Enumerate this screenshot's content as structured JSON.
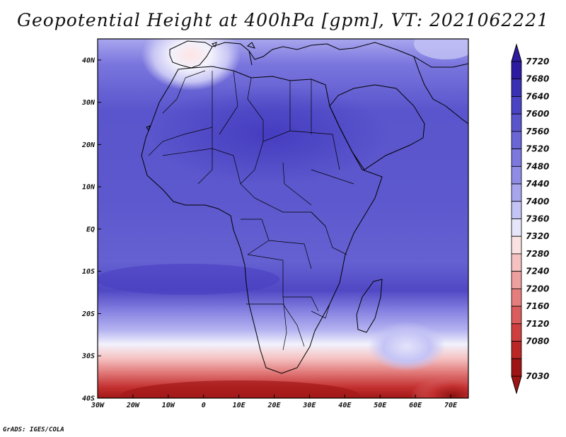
{
  "title": "Geopotential Height at 400hPa [gpm], VT: 2021062221",
  "footer": "GrADS: IGES/COLA",
  "map": {
    "lon_range": [
      -30,
      75
    ],
    "lat_range": [
      -40,
      45
    ],
    "lat_ticks": [
      {
        "value": 40,
        "label": "40N"
      },
      {
        "value": 30,
        "label": "30N"
      },
      {
        "value": 20,
        "label": "20N"
      },
      {
        "value": 10,
        "label": "10N"
      },
      {
        "value": 0,
        "label": "EQ"
      },
      {
        "value": -10,
        "label": "10S"
      },
      {
        "value": -20,
        "label": "20S"
      },
      {
        "value": -30,
        "label": "30S"
      },
      {
        "value": -40,
        "label": "40S"
      }
    ],
    "lon_ticks": [
      {
        "value": -30,
        "label": "30W"
      },
      {
        "value": -20,
        "label": "20W"
      },
      {
        "value": -10,
        "label": "10W"
      },
      {
        "value": 0,
        "label": "0"
      },
      {
        "value": 10,
        "label": "10E"
      },
      {
        "value": 20,
        "label": "20E"
      },
      {
        "value": 30,
        "label": "30E"
      },
      {
        "value": 40,
        "label": "40E"
      },
      {
        "value": 50,
        "label": "50E"
      },
      {
        "value": 60,
        "label": "60E"
      },
      {
        "value": 70,
        "label": "70E"
      }
    ]
  },
  "colorbar": {
    "levels": [
      "7720",
      "7680",
      "7640",
      "7600",
      "7560",
      "7520",
      "7480",
      "7440",
      "7400",
      "7360",
      "7320",
      "7280",
      "7240",
      "7200",
      "7160",
      "7120",
      "7080",
      "7030"
    ],
    "colors": [
      "#2c1ba0",
      "#3a30b4",
      "#4a44c4",
      "#5a55cc",
      "#6b66d6",
      "#7c78de",
      "#908ce6",
      "#a7a5ee",
      "#c4c3f5",
      "#e6e6fb",
      "#fbe2e2",
      "#f5c1c1",
      "#ee9f9f",
      "#e57d7d",
      "#db5c5c",
      "#cf3f3f",
      "#bb2727",
      "#9e1414"
    ]
  }
}
